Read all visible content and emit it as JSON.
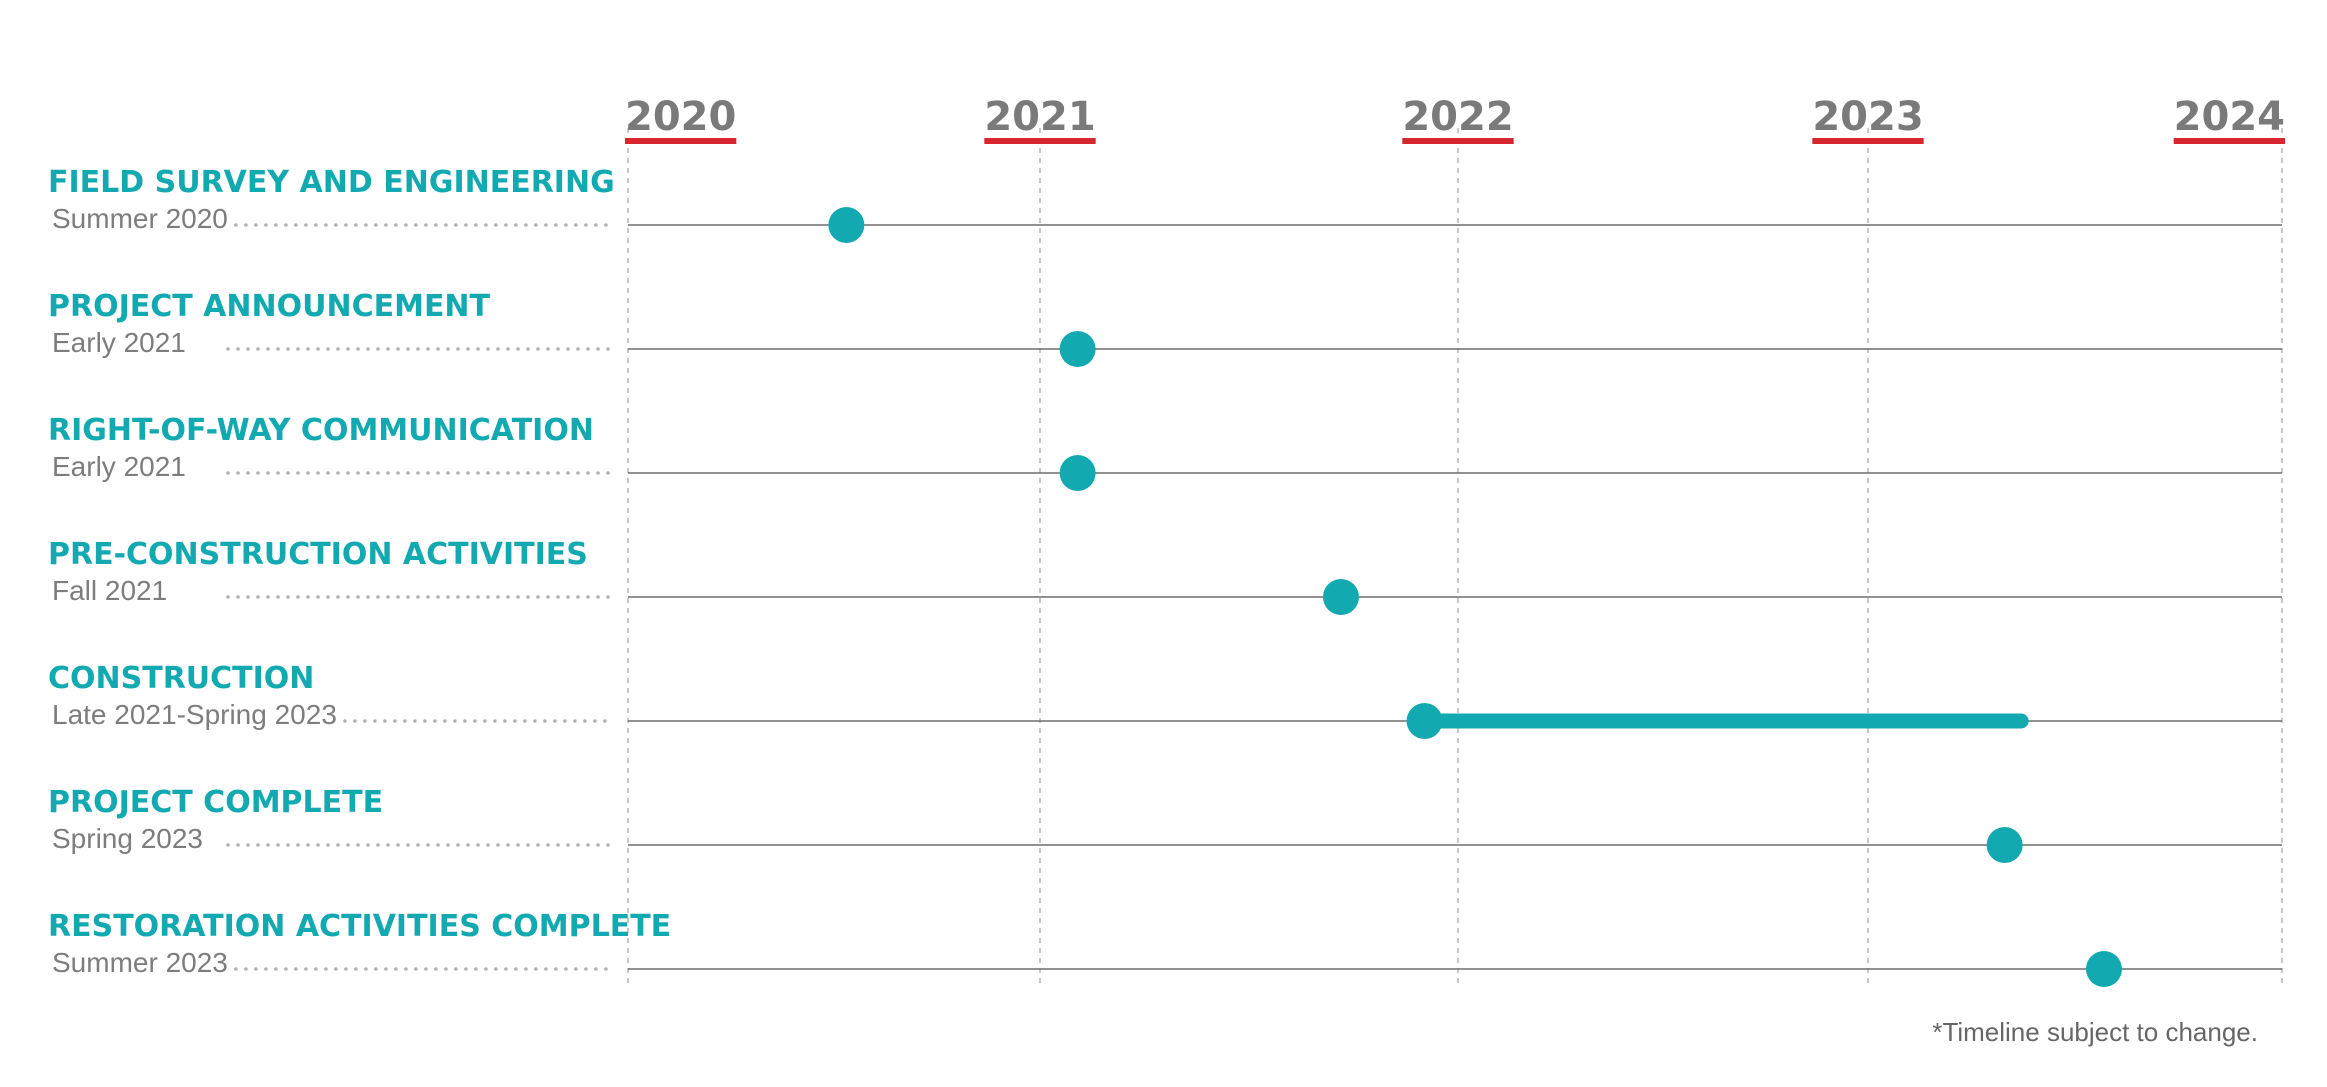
{
  "chart_data": {
    "type": "timeline",
    "x_axis": {
      "ticks": [
        2020,
        2021,
        2022,
        2023,
        2024
      ],
      "tick_labels": [
        "2020",
        "2021",
        "2022",
        "2023",
        "2024"
      ],
      "range": [
        2020,
        2024
      ]
    },
    "grid": true,
    "tasks": [
      {
        "name": "FIELD SURVEY AND ENGINEERING",
        "date_label": "Summer 2020",
        "start": 2020.53
      },
      {
        "name": "PROJECT ANNOUNCEMENT",
        "date_label": "Early 2021",
        "start": 2021.09
      },
      {
        "name": "RIGHT-OF-WAY COMMUNICATION",
        "date_label": "Early 2021",
        "start": 2021.09
      },
      {
        "name": "PRE-CONSTRUCTION ACTIVITIES",
        "date_label": "Fall 2021",
        "start": 2021.72
      },
      {
        "name": "CONSTRUCTION",
        "date_label": "Late 2021-Spring 2023",
        "start": 2021.92,
        "end": 2023.37
      },
      {
        "name": "PROJECT COMPLETE",
        "date_label": "Spring 2023",
        "start": 2023.33
      },
      {
        "name": "RESTORATION ACTIVITIES COMPLETE",
        "date_label": "Summer 2023",
        "start": 2023.57
      }
    ],
    "footnote": "*Timeline subject to change."
  },
  "colors": {
    "accent": "#12aab0",
    "year_underline": "#d7262d",
    "year_text": "#7a7a7a",
    "row_line": "#6e6e6e",
    "grid": "#b5b5b5",
    "leader_dots": "#b0b0b0",
    "date_text": "#7d7d7d"
  }
}
